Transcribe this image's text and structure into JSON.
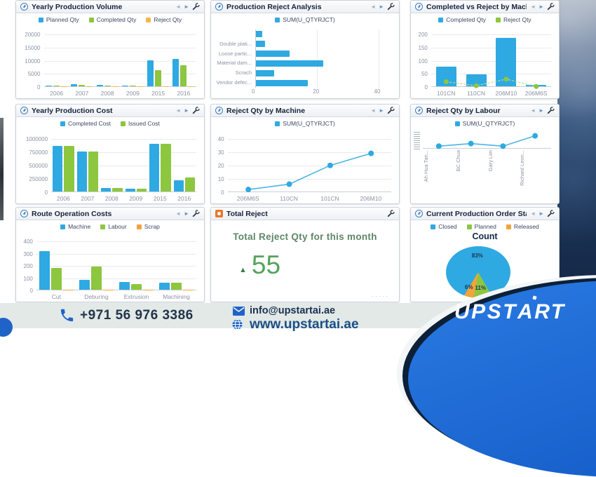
{
  "icons": {
    "back": "◄",
    "forward": "►"
  },
  "colors": {
    "blue": "#2fa9e1",
    "green": "#8dc63f",
    "orange": "#f0a43c",
    "logo_blue": "#1a66d6"
  },
  "panels": [
    {
      "title": "Yearly Production Volume"
    },
    {
      "title": "Production Reject Analysis"
    },
    {
      "title": "Completed vs Reject by Mach"
    },
    {
      "title": "Yearly Production Cost"
    },
    {
      "title": "Reject Qty by Machine"
    },
    {
      "title": "Reject Qty by Labour"
    },
    {
      "title": "Route Operation Costs"
    },
    {
      "title": "Total Reject"
    },
    {
      "title": "Current Production Order Stat"
    }
  ],
  "chart_data": [
    {
      "id": "yearly_volume",
      "type": "bar",
      "title": "Yearly Production Volume",
      "legend": [
        {
          "label": "Planned Qty",
          "color": "#2fa9e1"
        },
        {
          "label": "Completed Qty",
          "color": "#8dc63f"
        },
        {
          "label": "Reject Qty",
          "color": "#f0b84a"
        }
      ],
      "categories": [
        "2006",
        "2007",
        "2008",
        "2009",
        "2015",
        "2016"
      ],
      "series": [
        {
          "name": "Planned Qty",
          "color": "#2fa9e1",
          "values": [
            400,
            700,
            500,
            400,
            10000,
            10600
          ]
        },
        {
          "name": "Completed Qty",
          "color": "#8dc63f",
          "values": [
            300,
            600,
            350,
            250,
            6200,
            8000
          ]
        },
        {
          "name": "Reject Qty",
          "color": "#f0b84a",
          "values": [
            10,
            10,
            5,
            5,
            50,
            80
          ]
        }
      ],
      "yticks": [
        0,
        5000,
        10000,
        15000,
        20000
      ],
      "ymax": 22000
    },
    {
      "id": "reject_analysis",
      "type": "hbar",
      "title": "Production Reject Analysis",
      "legend": [
        {
          "label": "SUM(U_QTYRJCT)",
          "color": "#2fa9e1"
        }
      ],
      "categories": [
        "",
        "Double plati...",
        "Loose partic...",
        "Material dam...",
        "Scrach",
        "Vendor defec..."
      ],
      "values": [
        2,
        3,
        11,
        22,
        6,
        17
      ],
      "xticks": [
        0,
        20,
        40
      ],
      "xmax": 44,
      "color": "#2fa9e1"
    },
    {
      "id": "completed_vs_reject",
      "type": "bar",
      "title": "Completed vs Reject by Mach",
      "legend": [
        {
          "label": "Completed Qty",
          "color": "#2fa9e1"
        },
        {
          "label": "Reject Qty",
          "color": "#8dc63f"
        }
      ],
      "categories": [
        "101CN",
        "110CN",
        "206M10",
        "206M6S"
      ],
      "series": [
        {
          "name": "Completed Qty",
          "color": "#2fa9e1",
          "values": [
            75,
            45,
            185,
            5
          ]
        },
        {
          "name": "Reject Qty",
          "color": "#8dc63f",
          "values": [
            20,
            5,
            30,
            2
          ],
          "style": "points"
        }
      ],
      "yticks": [
        0,
        50,
        100,
        150,
        200
      ],
      "ymax": 220
    },
    {
      "id": "yearly_cost",
      "type": "bar",
      "title": "Yearly Production Cost",
      "legend": [
        {
          "label": "Completed Cost",
          "color": "#2fa9e1"
        },
        {
          "label": "Issued Cost",
          "color": "#8dc63f"
        }
      ],
      "categories": [
        "2006",
        "2007",
        "2008",
        "2009",
        "2015",
        "2016"
      ],
      "series": [
        {
          "name": "Completed Cost",
          "color": "#2fa9e1",
          "values": [
            850000,
            745000,
            70000,
            55000,
            895000,
            205000
          ]
        },
        {
          "name": "Issued Cost",
          "color": "#8dc63f",
          "values": [
            845000,
            745000,
            65000,
            50000,
            885000,
            265000
          ]
        }
      ],
      "yticks": [
        0,
        250000,
        500000,
        750000,
        1000000
      ],
      "ymax": 1100000
    },
    {
      "id": "reject_by_machine",
      "type": "line",
      "title": "Reject Qty by Machine",
      "legend": [
        {
          "label": "SUM(U_QTYRJCT)",
          "color": "#2fa9e1"
        }
      ],
      "categories": [
        "206M6S",
        "110CN",
        "101CN",
        "206M10"
      ],
      "values": [
        2,
        6,
        20,
        29
      ],
      "yticks": [
        0,
        10,
        20,
        30,
        40
      ],
      "ymax": 44,
      "color": "#49b5e5"
    },
    {
      "id": "reject_by_labour",
      "type": "line",
      "title": "Reject Qty by Labour",
      "legend": [
        {
          "label": "SUM(U_QTYRJCT)",
          "color": "#2fa9e1"
        }
      ],
      "categories": [
        "Ah Hua Tan...",
        "BC Chua",
        "Gary Lim",
        "Richard Leon..."
      ],
      "values": [
        1,
        2,
        1,
        5
      ],
      "yticks": [],
      "ymax": 6,
      "color": "#49b5e5",
      "vertical_xlabels": true,
      "squeezed_yaxis": true
    },
    {
      "id": "route_costs",
      "type": "bar",
      "title": "Route Operation Costs",
      "legend": [
        {
          "label": "Machine",
          "color": "#2fa9e1"
        },
        {
          "label": "Labour",
          "color": "#8dc63f"
        },
        {
          "label": "Scrap",
          "color": "#f0a43c"
        }
      ],
      "categories": [
        "Cut",
        "Deburing",
        "Extrusion",
        "Machining"
      ],
      "series": [
        {
          "name": "Machine",
          "color": "#2fa9e1",
          "values": [
            315,
            80,
            65,
            60
          ]
        },
        {
          "name": "Labour",
          "color": "#8dc63f",
          "values": [
            175,
            190,
            45,
            60
          ]
        },
        {
          "name": "Scrap",
          "color": "#f0a43c",
          "values": [
            2,
            2,
            2,
            2
          ]
        }
      ],
      "yticks": [
        0,
        100,
        200,
        300,
        400
      ],
      "ymax": 440
    },
    {
      "id": "total_reject",
      "type": "kpi",
      "title": "Total Reject",
      "label": "Total Reject Qty for this month",
      "value": "55",
      "trend": "up",
      "trend_glyph": "▲",
      "more_indicator": "·····"
    },
    {
      "id": "order_status",
      "type": "pie",
      "title": "Count",
      "legend": [
        {
          "label": "Closed",
          "color": "#2fa9e1"
        },
        {
          "label": "Planned",
          "color": "#8dc63f"
        },
        {
          "label": "Released",
          "color": "#f0a43c"
        }
      ],
      "start_angle": 150,
      "slices": [
        {
          "label": "Planned",
          "pct": 11,
          "text": "11%",
          "color": "#8dc63f"
        },
        {
          "label": "Released",
          "pct": 6,
          "text": "6%",
          "color": "#f0a43c"
        },
        {
          "label": "Closed",
          "pct": 83,
          "text": "83%",
          "color": "#2fa9e1"
        }
      ]
    }
  ],
  "footer": {
    "phone": "+971 56 976 3386",
    "email": "info@upstartai.ae",
    "website": "www.upstartai.ae"
  },
  "logo": {
    "text": "UPSTART",
    "text_pre": "UPST",
    "text_a": "A",
    "text_post": "RT"
  }
}
